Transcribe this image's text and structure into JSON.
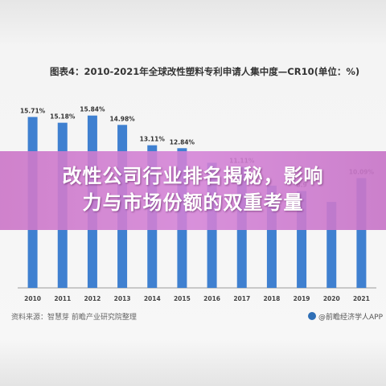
{
  "chart_title": "图表4：2010-2021年全球改性塑料专利申请人集中度—CR10(单位：%)",
  "source": "资料来源：智慧芽 前瞻产业研究院整理",
  "logo_text": "@前瞻经济学人APP",
  "headline_lines": [
    "改性公司行业排名揭秘，影响",
    "力与市场份额的双重考量"
  ],
  "colors": {
    "bar": "#3f80d0",
    "label": "#333333",
    "banner": "#cf7ecd",
    "headline": "#ffffff"
  },
  "chart_data": {
    "type": "bar",
    "title": "图表4：2010-2021年全球改性塑料专利申请人集中度—CR10(单位：%)",
    "xlabel": "",
    "ylabel": "",
    "ylim": [
      0,
      17
    ],
    "grid": false,
    "categories": [
      "2010",
      "2011",
      "2012",
      "2013",
      "2014",
      "2015",
      "2016",
      "2017",
      "2018",
      "2019",
      "2020",
      "2021"
    ],
    "values": [
      15.71,
      15.18,
      15.84,
      14.98,
      13.11,
      12.84,
      11.5,
      11.11,
      9.4,
      8.9,
      7.9,
      10.09
    ],
    "data_labels": [
      "15.71%",
      "15.18%",
      "15.84%",
      "14.98%",
      "13.11%",
      "12.84%",
      "",
      "11.11%",
      "",
      "8.9",
      "",
      "10.09%"
    ]
  }
}
